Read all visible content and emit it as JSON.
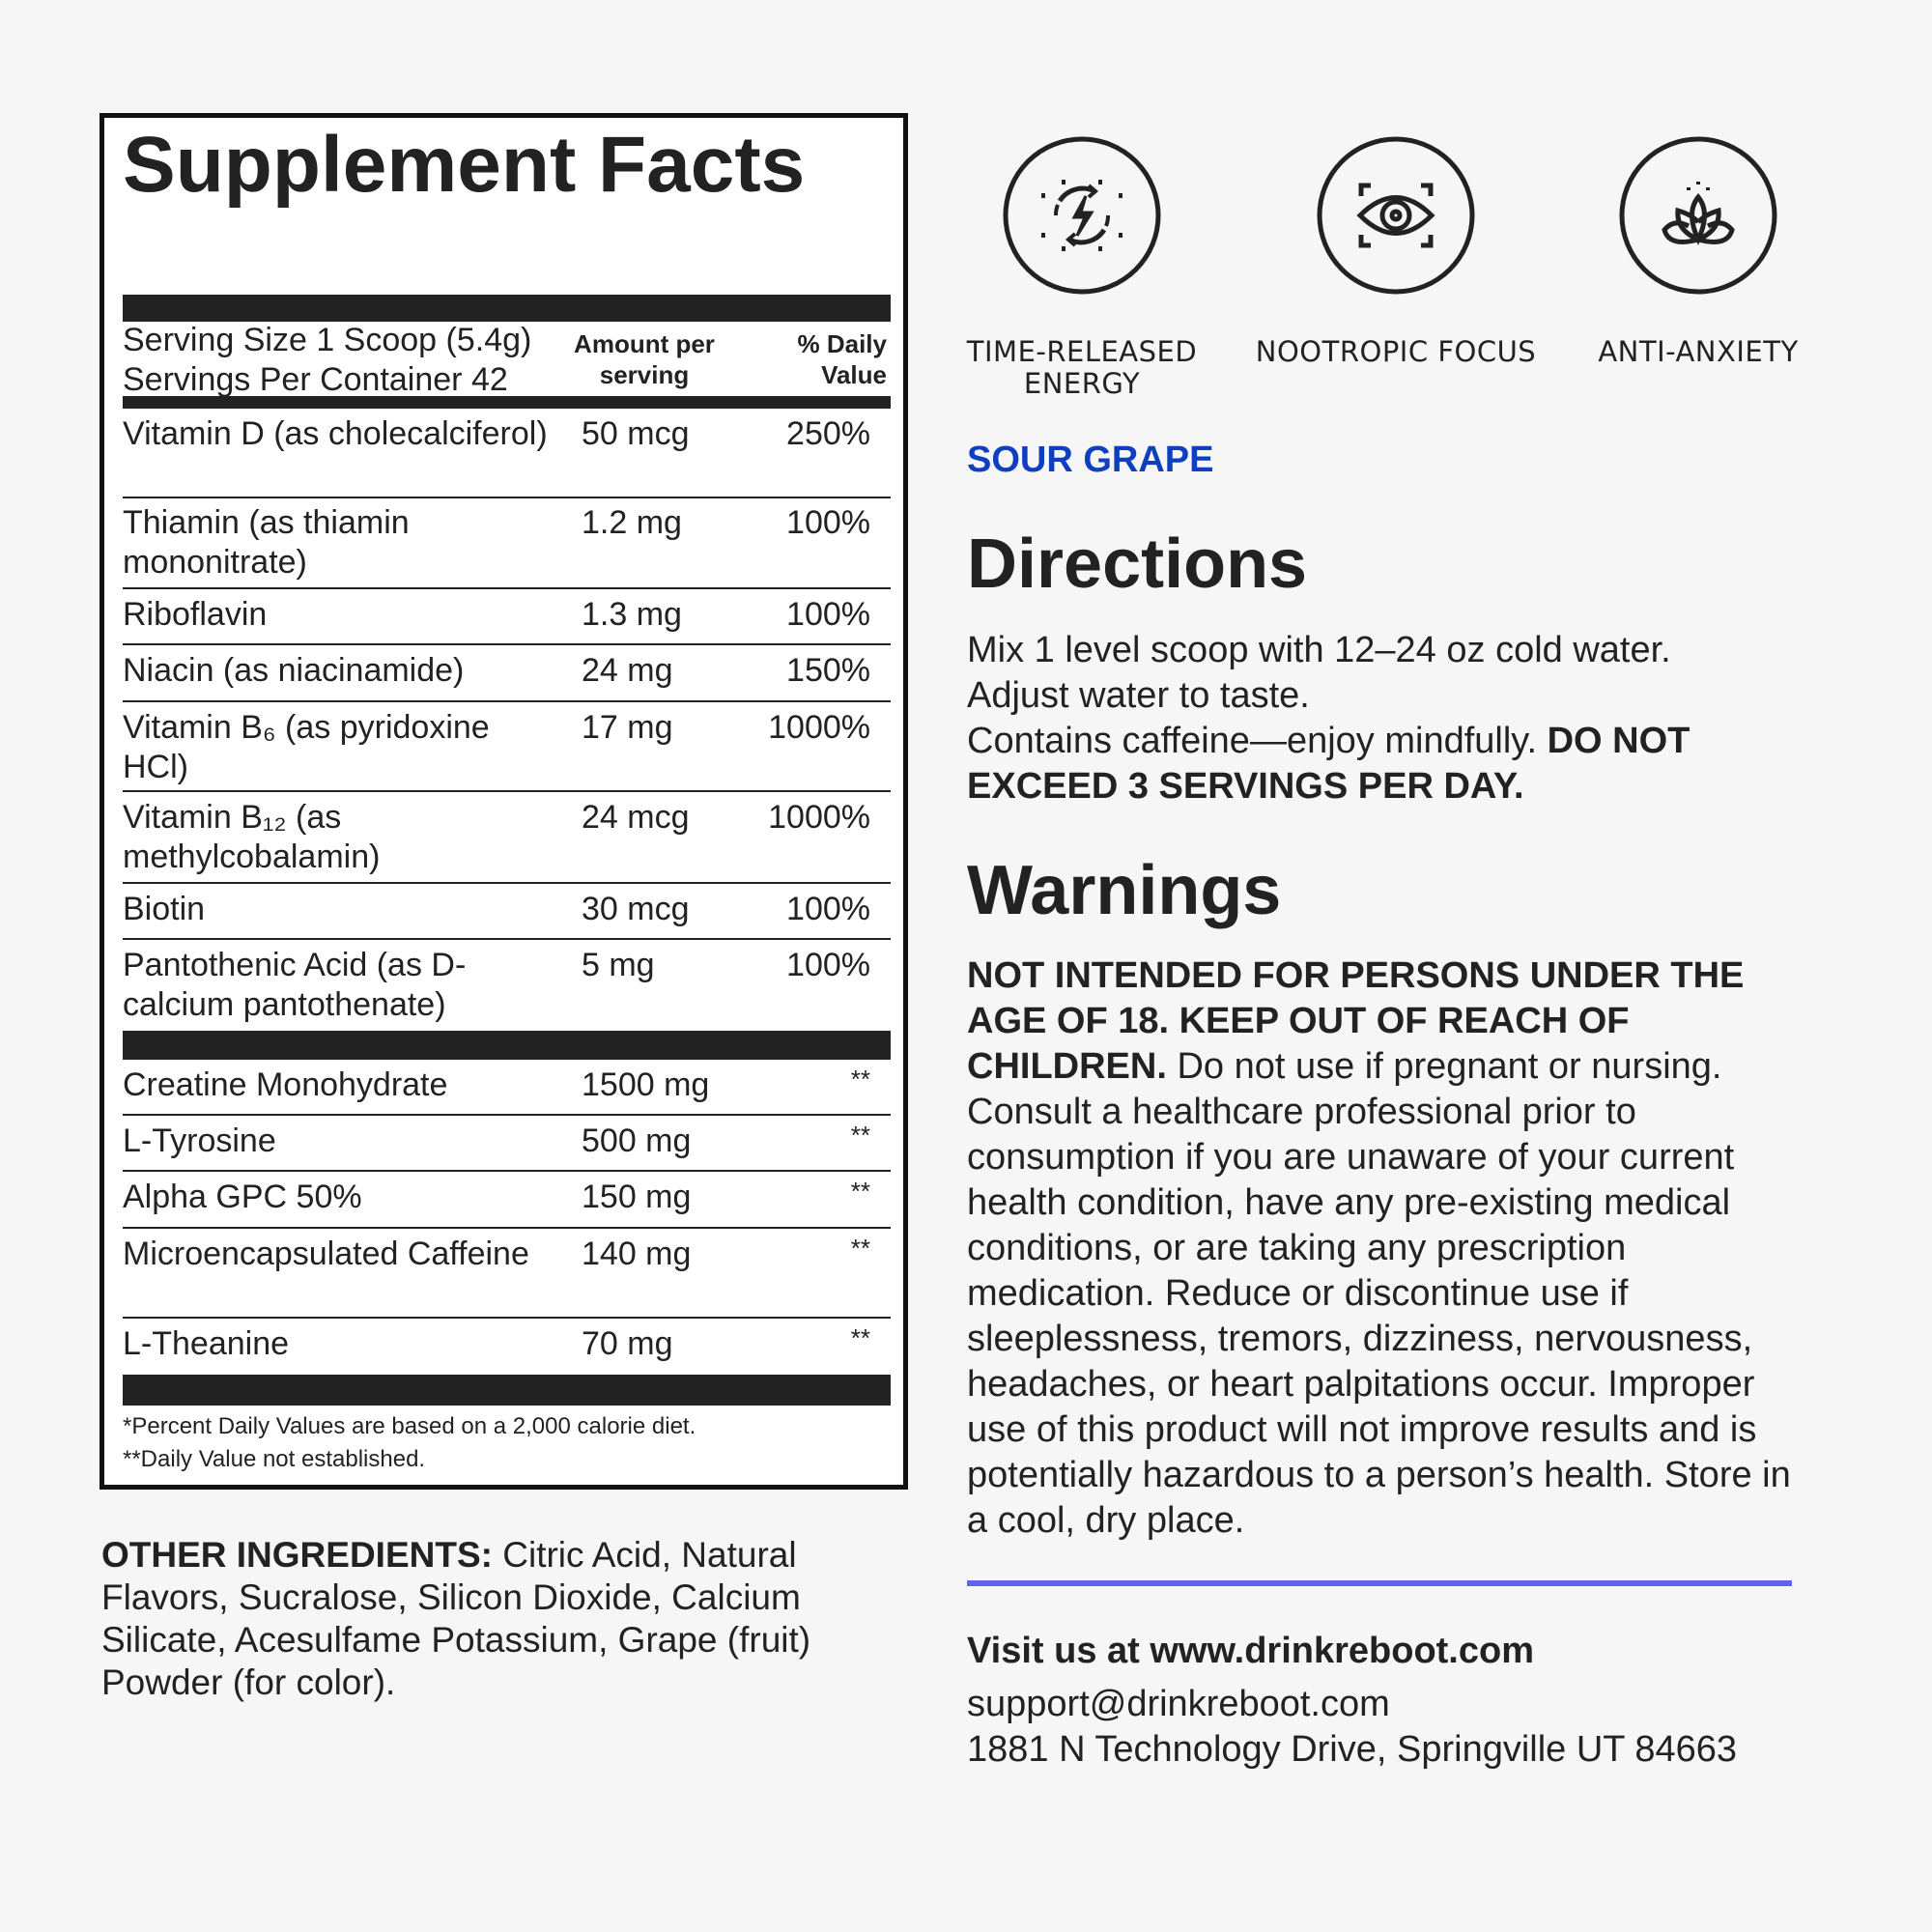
{
  "facts": {
    "title": "Supplement Facts",
    "serving_size": "Serving Size 1 Scoop (5.4g)",
    "servings_per_container": "Servings Per Container 42",
    "col_amount": "Amount per serving",
    "col_dv": "% Daily Value",
    "vitamins": [
      {
        "name": "Vitamin D (as cholecalciferol)",
        "amount": "50 mcg",
        "dv": "250%"
      },
      {
        "name": "Thiamin (as thiamin mononitrate)",
        "amount": "1.2 mg",
        "dv": "100%"
      },
      {
        "name": "Riboflavin",
        "amount": "1.3 mg",
        "dv": "100%"
      },
      {
        "name": "Niacin (as niacinamide)",
        "amount": "24 mg",
        "dv": "150%"
      },
      {
        "name": "Vitamin B₆ (as pyridoxine HCl)",
        "amount": "17 mg",
        "dv": "1000%"
      },
      {
        "name": "Vitamin B₁₂ (as methylcobalamin)",
        "amount": "24 mcg",
        "dv": "1000%"
      },
      {
        "name": "Biotin",
        "amount": "30 mcg",
        "dv": "100%"
      },
      {
        "name": "Pantothenic Acid (as D-calcium pantothenate)",
        "amount": "5 mg",
        "dv": "100%"
      }
    ],
    "others": [
      {
        "name": "Creatine Monohydrate",
        "amount": "1500 mg",
        "dv": "**"
      },
      {
        "name": "L-Tyrosine",
        "amount": "500 mg",
        "dv": "**"
      },
      {
        "name": "Alpha GPC 50%",
        "amount": "150 mg",
        "dv": "**"
      },
      {
        "name": "Microencapsulated Caffeine",
        "amount": "140 mg",
        "dv": "**"
      },
      {
        "name": "L-Theanine",
        "amount": "70 mg",
        "dv": "**"
      }
    ],
    "footnote1": "*Percent Daily Values are based on a 2,000 calorie diet.",
    "footnote2": "**Daily Value not established."
  },
  "other_ingredients": {
    "label": "OTHER INGREDIENTS:",
    "text": " Citric Acid, Natural Flavors, Sucralose, Silicon Dioxide, Calcium Silicate, Acesulfame Potassium, Grape (fruit) Powder (for color)."
  },
  "features": [
    {
      "icon": "energy-bolt-icon",
      "label_line1": "TIME-RELEASED",
      "label_line2": "ENERGY"
    },
    {
      "icon": "eye-focus-icon",
      "label_line1": "NOOTROPIC FOCUS",
      "label_line2": ""
    },
    {
      "icon": "lotus-icon",
      "label_line1": "ANTI-ANXIETY",
      "label_line2": ""
    }
  ],
  "flavor": "SOUR GRAPE",
  "directions": {
    "heading": "Directions",
    "text1": "Mix 1 level scoop with 12–24 oz cold water.",
    "text2": "Adjust water to taste.",
    "text3": "Contains caffeine—enjoy mindfully. ",
    "bold": "DO NOT EXCEED 3 SERVINGS PER DAY."
  },
  "warnings": {
    "heading": "Warnings",
    "bold": "NOT INTENDED FOR PERSONS UNDER THE AGE OF 18. KEEP OUT OF REACH OF CHILDREN.",
    "text": " Do not use if pregnant or nursing. Consult a healthcare professional prior to consumption if you are unaware of your current health condition, have any pre-existing medical conditions, or are taking any prescription medication. Reduce or discontinue use if sleeplessness, tremors, dizziness, nervousness, headaches, or heart palpitations occur. Improper use of this product will not improve results and is potentially hazardous to a person’s health. Store in a cool, dry place."
  },
  "contact": {
    "visit": "Visit us at www.drinkreboot.com",
    "email": "support@drinkreboot.com",
    "address": "1881 N Technology Drive, Springville UT 84663"
  },
  "colors": {
    "flavor": "#0f3fbf",
    "divider": "#6262ee",
    "text": "#222222",
    "background": "#f6f6f6"
  }
}
